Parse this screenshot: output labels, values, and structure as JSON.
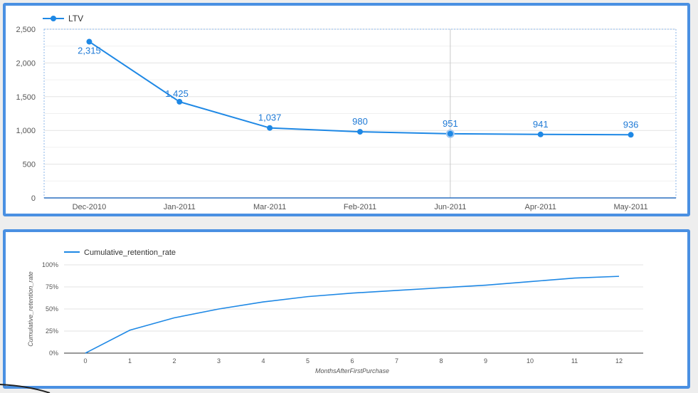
{
  "colors": {
    "accent": "#1e88e5",
    "frame": "#4a90e2",
    "grid": "#e3e3e3"
  },
  "chart_data": [
    {
      "type": "line",
      "title": "",
      "xlabel": "",
      "ylabel": "",
      "categories": [
        "Dec-2010",
        "Jan-2011",
        "Mar-2011",
        "Feb-2011",
        "Jun-2011",
        "Apr-2011",
        "May-2011"
      ],
      "series": [
        {
          "name": "LTV",
          "values": [
            2315,
            1425,
            1037,
            980,
            951,
            941,
            936
          ]
        }
      ],
      "data_labels": [
        "2,315",
        "1,425",
        "1,037",
        "980",
        "951",
        "941",
        "936"
      ],
      "y_ticks": [
        0,
        500,
        1000,
        1500,
        2000,
        2500
      ],
      "y_tick_labels": [
        "0",
        "500",
        "1,000",
        "1,500",
        "2,000",
        "2,500"
      ],
      "ylim": [
        0,
        2500
      ],
      "markers": true,
      "grid": true,
      "legend": "top-left"
    },
    {
      "type": "line",
      "title": "",
      "xlabel": "MonthsAfterFirstPurchase",
      "ylabel": "Cumulative_retention_rate",
      "x": [
        0,
        1,
        2,
        3,
        4,
        5,
        6,
        7,
        8,
        9,
        10,
        11,
        12
      ],
      "series": [
        {
          "name": "Cumulative_retention_rate",
          "values": [
            0,
            0.26,
            0.4,
            0.5,
            0.58,
            0.64,
            0.68,
            0.71,
            0.74,
            0.77,
            0.81,
            0.85,
            0.87
          ]
        }
      ],
      "y_ticks": [
        0,
        0.25,
        0.5,
        0.75,
        1
      ],
      "y_tick_labels": [
        "0%",
        "25%",
        "50%",
        "75%",
        "100%"
      ],
      "ylim": [
        0,
        1
      ],
      "xlim": [
        0,
        12
      ],
      "markers": false,
      "grid": true,
      "legend": "top-left"
    }
  ]
}
